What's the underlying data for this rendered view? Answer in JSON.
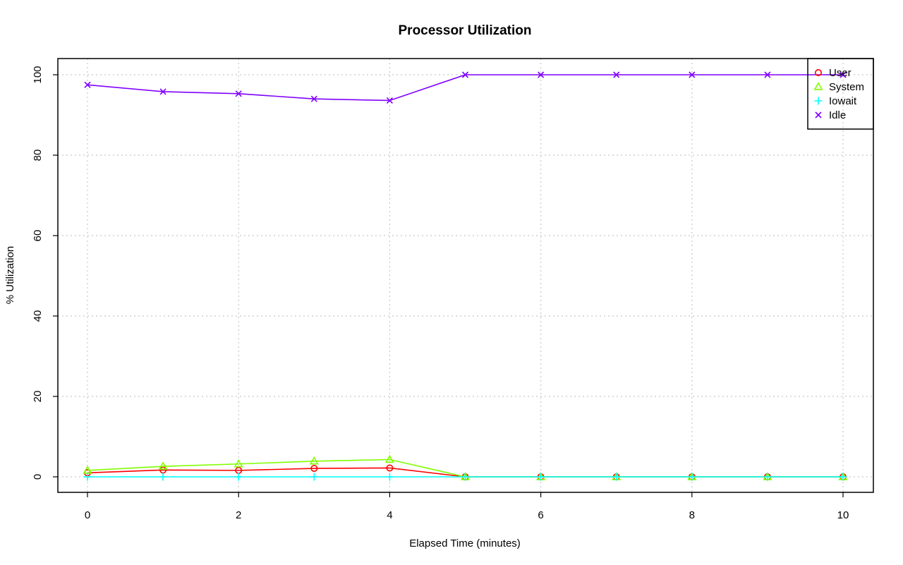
{
  "chart_data": {
    "type": "line",
    "title": "Processor Utilization",
    "xlabel": "Elapsed Time (minutes)",
    "ylabel": "% Utilization",
    "xlim": [
      0,
      10
    ],
    "ylim": [
      0,
      100
    ],
    "x_ticks": [
      "0",
      "2",
      "4",
      "6",
      "8",
      "10"
    ],
    "y_ticks": [
      "0",
      "20",
      "40",
      "60",
      "80",
      "100"
    ],
    "grid": true,
    "legend_position": "top-right",
    "x": [
      0,
      1,
      2,
      3,
      4,
      5,
      6,
      7,
      8,
      9,
      10
    ],
    "series": [
      {
        "name": "User",
        "color": "#ff0000",
        "marker": "circle",
        "values": [
          1.0,
          1.7,
          1.6,
          2.1,
          2.2,
          0,
          0,
          0,
          0,
          0,
          0
        ]
      },
      {
        "name": "System",
        "color": "#80ff00",
        "marker": "triangle",
        "values": [
          1.6,
          2.6,
          3.2,
          3.9,
          4.3,
          0,
          0,
          0,
          0,
          0,
          0
        ]
      },
      {
        "name": "Iowait",
        "color": "#00ffff",
        "marker": "plus",
        "values": [
          0,
          0,
          0,
          0,
          0,
          0,
          0,
          0,
          0,
          0,
          0
        ]
      },
      {
        "name": "Idle",
        "color": "#8000ff",
        "marker": "cross",
        "values": [
          97.5,
          95.8,
          95.3,
          94.0,
          93.6,
          100,
          100,
          100,
          100,
          100,
          100
        ]
      }
    ]
  }
}
